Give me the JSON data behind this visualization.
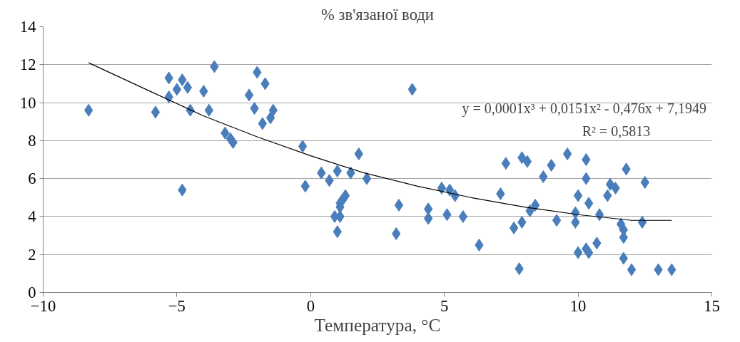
{
  "chart_data": {
    "type": "scatter",
    "xlabel": "Температура, °C",
    "ylabel": "% зв'язаної води",
    "xlim": [
      -10,
      15
    ],
    "xticks": [
      -10,
      -5,
      0,
      5,
      10,
      15
    ],
    "ylim": [
      0,
      14
    ],
    "yticks": [
      0,
      2,
      4,
      6,
      8,
      10,
      12,
      14
    ],
    "grid": "y",
    "marker": "diamond",
    "annotations": [
      "y = 0,0001x³ + 0,0151x² - 0,476x + 7,1949",
      "R² = 0,5813"
    ],
    "series": [
      {
        "color": "#4a7ebb",
        "x": [
          -8.3,
          -5.8,
          -5.3,
          -5.3,
          -5.0,
          -4.8,
          -4.6,
          -4.5,
          -4.8,
          -4.0,
          -3.8,
          -3.6,
          -3.2,
          -3.0,
          -2.9,
          -2.3,
          -2.1,
          -2.0,
          -1.7,
          -1.8,
          -1.5,
          -1.4,
          -0.3,
          -0.2,
          0.4,
          0.7,
          1.0,
          1.5,
          1.8,
          2.1,
          1.3,
          1.2,
          1.1,
          1.1,
          0.9,
          1.1,
          1.0,
          3.2,
          3.3,
          3.8,
          4.4,
          4.4,
          4.9,
          5.2,
          5.4,
          5.1,
          5.7,
          6.3,
          7.1,
          7.3,
          7.6,
          7.8,
          7.9,
          7.9,
          8.1,
          8.2,
          8.4,
          8.7,
          9.0,
          9.2,
          9.6,
          9.9,
          9.9,
          10.0,
          10.0,
          10.3,
          10.3,
          10.3,
          10.4,
          10.4,
          10.7,
          10.8,
          11.1,
          11.2,
          11.4,
          11.6,
          11.7,
          11.7,
          11.7,
          11.8,
          12.0,
          12.4,
          12.5,
          13.0,
          13.5
        ],
        "values": [
          9.6,
          9.5,
          11.3,
          10.3,
          10.7,
          11.2,
          10.8,
          9.6,
          5.4,
          10.6,
          9.6,
          11.9,
          8.4,
          8.1,
          7.9,
          10.4,
          9.7,
          11.6,
          11.0,
          8.9,
          9.2,
          9.6,
          7.7,
          5.6,
          6.3,
          5.9,
          6.4,
          6.3,
          7.3,
          6.0,
          5.1,
          4.9,
          4.7,
          4.5,
          4.0,
          4.0,
          3.2,
          3.1,
          4.6,
          10.7,
          4.4,
          3.9,
          5.5,
          5.4,
          5.1,
          4.1,
          4.0,
          2.5,
          5.2,
          6.8,
          3.4,
          1.25,
          3.7,
          7.1,
          6.9,
          4.3,
          4.6,
          6.1,
          6.7,
          3.8,
          7.3,
          4.2,
          3.7,
          5.1,
          2.1,
          7.0,
          6.0,
          2.3,
          2.1,
          4.7,
          2.6,
          4.1,
          5.1,
          5.7,
          5.5,
          3.6,
          3.3,
          2.9,
          1.8,
          6.5,
          1.2,
          3.7,
          5.8,
          1.2,
          1.2
        ]
      },
      {
        "type": "line",
        "color": "#000000",
        "marker": "none",
        "x": [
          -8.3,
          -6,
          -4,
          -2,
          0,
          2,
          4,
          6,
          8,
          10,
          12,
          13.5
        ],
        "values": [
          12.1,
          10.6,
          9.3,
          8.2,
          7.2,
          6.3,
          5.6,
          5.0,
          4.5,
          4.1,
          3.8,
          3.8
        ]
      }
    ]
  }
}
